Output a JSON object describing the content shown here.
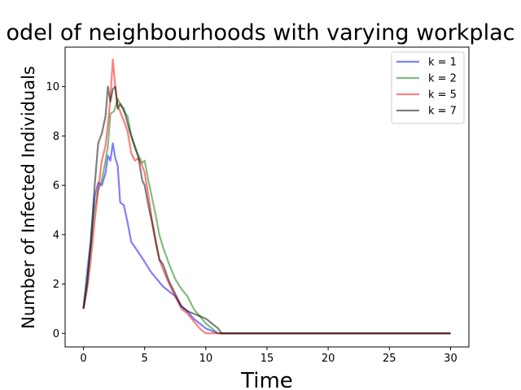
{
  "chart_data": {
    "type": "line",
    "title": "odel of neighbourhoods with varying workplac",
    "xlabel": "Time",
    "ylabel": "Number of Infected Individuals",
    "xlim": [
      -1.5,
      31.5
    ],
    "ylim": [
      -0.55,
      11.6
    ],
    "xticks": [
      0,
      5,
      10,
      15,
      20,
      25,
      30
    ],
    "yticks": [
      0,
      2,
      4,
      6,
      8,
      10
    ],
    "grid": false,
    "legend_position": "top-right",
    "series": [
      {
        "name": "k = 1",
        "color": "#0000ff",
        "x": [
          0,
          0.3,
          0.6,
          0.9,
          1.2,
          1.5,
          1.8,
          2.0,
          2.2,
          2.4,
          2.6,
          2.8,
          3.0,
          3.3,
          3.6,
          3.9,
          4.2,
          4.6,
          5.0,
          5.5,
          6.0,
          6.5,
          7.0,
          7.5,
          8.0,
          8.5,
          9.0,
          9.5,
          10.0,
          10.5,
          11.0,
          30
        ],
        "y": [
          1.0,
          2.5,
          3.8,
          5.5,
          6.1,
          6.0,
          6.5,
          7.2,
          7.0,
          7.7,
          7.1,
          6.8,
          5.3,
          5.2,
          4.5,
          3.7,
          3.5,
          3.2,
          2.9,
          2.5,
          2.2,
          1.9,
          1.7,
          1.5,
          1.1,
          0.9,
          0.6,
          0.4,
          0.2,
          0.1,
          0.0,
          0.0
        ]
      },
      {
        "name": "k = 2",
        "color": "#008000",
        "x": [
          0,
          0.3,
          0.6,
          0.9,
          1.2,
          1.5,
          1.8,
          2.0,
          2.2,
          2.5,
          2.8,
          3.0,
          3.3,
          3.6,
          3.9,
          4.2,
          4.5,
          4.8,
          5.0,
          5.3,
          5.6,
          5.9,
          6.2,
          6.5,
          7.0,
          7.5,
          8.0,
          8.5,
          9.0,
          9.5,
          10.0,
          10.5,
          11.0,
          30
        ],
        "y": [
          1.0,
          2.2,
          3.5,
          5.0,
          5.8,
          6.2,
          7.0,
          7.6,
          8.9,
          9.0,
          9.5,
          9.3,
          9.0,
          8.8,
          8.0,
          7.5,
          7.2,
          6.9,
          7.0,
          6.2,
          5.5,
          4.8,
          4.0,
          3.5,
          2.8,
          2.2,
          1.8,
          1.5,
          1.0,
          0.7,
          0.4,
          0.2,
          0.0,
          0.0
        ]
      },
      {
        "name": "k = 5",
        "color": "#ff0000",
        "x": [
          0,
          0.3,
          0.6,
          0.9,
          1.2,
          1.5,
          1.8,
          2.0,
          2.2,
          2.4,
          2.6,
          2.8,
          3.0,
          3.3,
          3.6,
          3.9,
          4.2,
          4.5,
          4.8,
          5.0,
          5.3,
          5.6,
          5.9,
          6.2,
          6.5,
          7.0,
          7.5,
          8.0,
          8.5,
          9.0,
          9.5,
          10.0,
          10.5,
          30
        ],
        "y": [
          1.0,
          1.8,
          3.0,
          4.5,
          5.8,
          7.0,
          7.6,
          8.5,
          9.5,
          11.1,
          10.0,
          9.2,
          9.0,
          8.6,
          8.2,
          7.3,
          7.0,
          7.1,
          6.8,
          6.5,
          5.6,
          4.6,
          3.8,
          3.0,
          2.6,
          2.0,
          1.5,
          1.0,
          0.8,
          0.5,
          0.2,
          0.0,
          0.0,
          0.0
        ]
      },
      {
        "name": "k = 7",
        "color": "#000000",
        "x": [
          0,
          0.3,
          0.6,
          0.9,
          1.2,
          1.5,
          1.8,
          2.0,
          2.2,
          2.4,
          2.6,
          2.8,
          3.0,
          3.3,
          3.6,
          3.9,
          4.2,
          4.5,
          4.8,
          5.0,
          5.3,
          5.6,
          5.9,
          6.2,
          6.5,
          7.0,
          7.5,
          8.0,
          8.5,
          9.0,
          9.5,
          10.0,
          10.5,
          11.0,
          11.3,
          30
        ],
        "y": [
          1.0,
          2.0,
          3.7,
          5.9,
          7.7,
          8.1,
          8.8,
          10.0,
          9.4,
          9.9,
          10.0,
          9.1,
          9.3,
          9.1,
          8.5,
          8.0,
          7.6,
          7.1,
          6.2,
          6.0,
          5.2,
          4.5,
          3.7,
          3.0,
          2.8,
          2.1,
          1.6,
          1.1,
          0.9,
          0.8,
          0.7,
          0.6,
          0.4,
          0.2,
          0.0,
          0.0
        ]
      }
    ]
  }
}
